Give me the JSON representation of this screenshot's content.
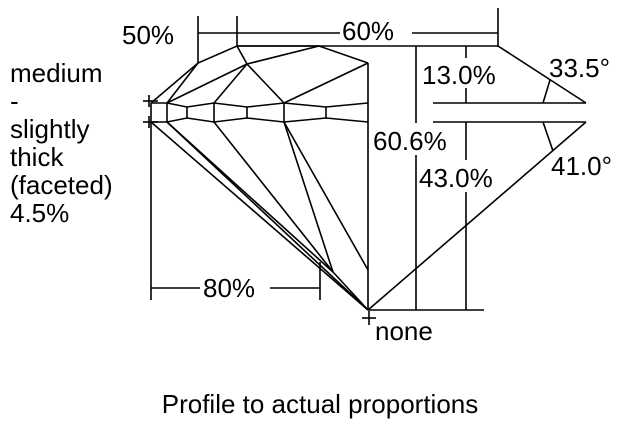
{
  "girdle_label": [
    "medium",
    "-",
    "slightly",
    "thick",
    "(faceted)",
    "4.5%"
  ],
  "table_percent": "60%",
  "star_percent": "50%",
  "lower_half_percent": "80%",
  "crown_height": "13.0%",
  "crown_angle": "33.5°",
  "total_depth": "60.6%",
  "pavilion_depth": "43.0%",
  "pavilion_angle": "41.0°",
  "culet": "none",
  "caption": "Profile to actual proportions"
}
